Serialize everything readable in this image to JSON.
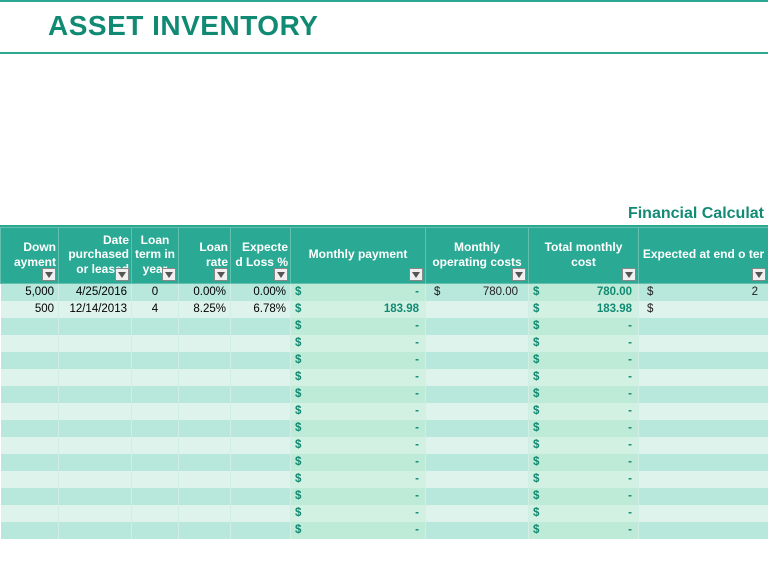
{
  "title": "ASSET INVENTORY",
  "section_heading": "Financial Calculat",
  "columns": [
    {
      "label": "Down ayment",
      "filter": true
    },
    {
      "label": "Date purchased or leased",
      "filter": true
    },
    {
      "label": "Loan term in year",
      "filter": true
    },
    {
      "label": "Loan rate",
      "filter": true
    },
    {
      "label": "Expecte d Loss %",
      "filter": true
    },
    {
      "label": "Monthly payment",
      "filter": true
    },
    {
      "label": "Monthly operating costs",
      "filter": true
    },
    {
      "label": "Total monthly cost",
      "filter": true
    },
    {
      "label": "Expected at end o ter",
      "filter": true
    }
  ],
  "rows": [
    {
      "down": "5,000",
      "date": "4/25/2016",
      "term": "0",
      "rate": "0.00%",
      "loss": "0.00%",
      "mp": "-",
      "moc": "780.00",
      "tmc": "780.00",
      "exp": "2"
    },
    {
      "down": "500",
      "date": "12/14/2013",
      "term": "4",
      "rate": "8.25%",
      "loss": "6.78%",
      "mp": "183.98",
      "moc": "",
      "tmc": "183.98",
      "exp": ""
    },
    {
      "down": "",
      "date": "",
      "term": "",
      "rate": "",
      "loss": "",
      "mp": "-",
      "moc": "",
      "tmc": "-",
      "exp": ""
    },
    {
      "down": "",
      "date": "",
      "term": "",
      "rate": "",
      "loss": "",
      "mp": "-",
      "moc": "",
      "tmc": "-",
      "exp": ""
    },
    {
      "down": "",
      "date": "",
      "term": "",
      "rate": "",
      "loss": "",
      "mp": "-",
      "moc": "",
      "tmc": "-",
      "exp": ""
    },
    {
      "down": "",
      "date": "",
      "term": "",
      "rate": "",
      "loss": "",
      "mp": "-",
      "moc": "",
      "tmc": "-",
      "exp": ""
    },
    {
      "down": "",
      "date": "",
      "term": "",
      "rate": "",
      "loss": "",
      "mp": "-",
      "moc": "",
      "tmc": "-",
      "exp": ""
    },
    {
      "down": "",
      "date": "",
      "term": "",
      "rate": "",
      "loss": "",
      "mp": "-",
      "moc": "",
      "tmc": "-",
      "exp": ""
    },
    {
      "down": "",
      "date": "",
      "term": "",
      "rate": "",
      "loss": "",
      "mp": "-",
      "moc": "",
      "tmc": "-",
      "exp": ""
    },
    {
      "down": "",
      "date": "",
      "term": "",
      "rate": "",
      "loss": "",
      "mp": "-",
      "moc": "",
      "tmc": "-",
      "exp": ""
    },
    {
      "down": "",
      "date": "",
      "term": "",
      "rate": "",
      "loss": "",
      "mp": "-",
      "moc": "",
      "tmc": "-",
      "exp": ""
    },
    {
      "down": "",
      "date": "",
      "term": "",
      "rate": "",
      "loss": "",
      "mp": "-",
      "moc": "",
      "tmc": "-",
      "exp": ""
    },
    {
      "down": "",
      "date": "",
      "term": "",
      "rate": "",
      "loss": "",
      "mp": "-",
      "moc": "",
      "tmc": "-",
      "exp": ""
    },
    {
      "down": "",
      "date": "",
      "term": "",
      "rate": "",
      "loss": "",
      "mp": "-",
      "moc": "",
      "tmc": "-",
      "exp": ""
    },
    {
      "down": "",
      "date": "",
      "term": "",
      "rate": "",
      "loss": "",
      "mp": "-",
      "moc": "",
      "tmc": "-",
      "exp": ""
    }
  ],
  "currency_symbol": "$"
}
